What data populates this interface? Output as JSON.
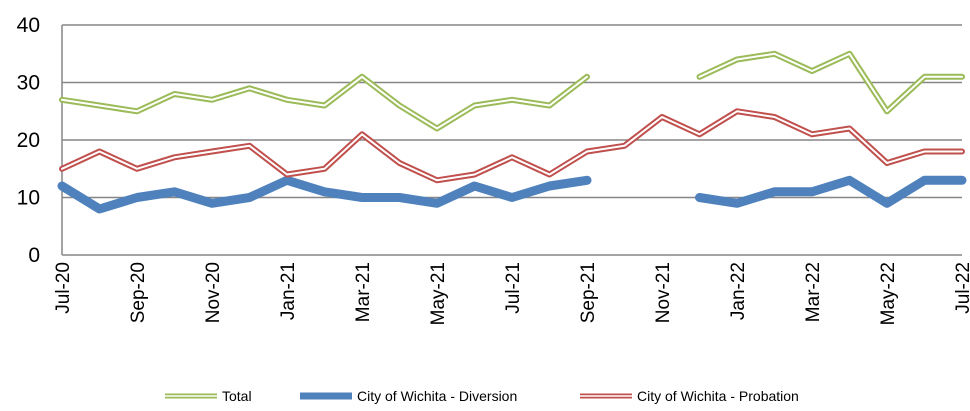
{
  "chart_data": {
    "type": "line",
    "categories": [
      "Jul-20",
      null,
      "Sep-20",
      null,
      "Nov-20",
      null,
      "Jan-21",
      null,
      "Mar-21",
      null,
      "May-21",
      null,
      "Jul-21",
      null,
      "Sep-21",
      null,
      "Nov-21",
      null,
      "Jan-22",
      null,
      "Mar-22",
      null,
      "May-22",
      null,
      "Jul-22"
    ],
    "series": [
      {
        "name": "Total",
        "color": "#9bbb59",
        "values": [
          27,
          26,
          25,
          28,
          27,
          29,
          27,
          26,
          31,
          26,
          22,
          26,
          27,
          26,
          31,
          null,
          null,
          31,
          34,
          35,
          32,
          35,
          25,
          31,
          31
        ]
      },
      {
        "name": "City of Wichita - Diversion",
        "color": "#4f81bd",
        "values": [
          12,
          8,
          10,
          11,
          9,
          10,
          13,
          11,
          10,
          10,
          9,
          12,
          10,
          12,
          13,
          null,
          null,
          10,
          9,
          11,
          11,
          13,
          9,
          13,
          13
        ]
      },
      {
        "name": "City of Wichita - Probation",
        "color": "#c0504d",
        "values": [
          15,
          18,
          15,
          17,
          18,
          19,
          14,
          15,
          21,
          16,
          13,
          14,
          17,
          14,
          18,
          19,
          24,
          21,
          25,
          24,
          21,
          22,
          16,
          18,
          18
        ]
      }
    ],
    "ylim": [
      0,
      40
    ],
    "yticks": [
      0,
      10,
      20,
      30,
      40
    ],
    "grid": true,
    "legend": "bottom"
  }
}
